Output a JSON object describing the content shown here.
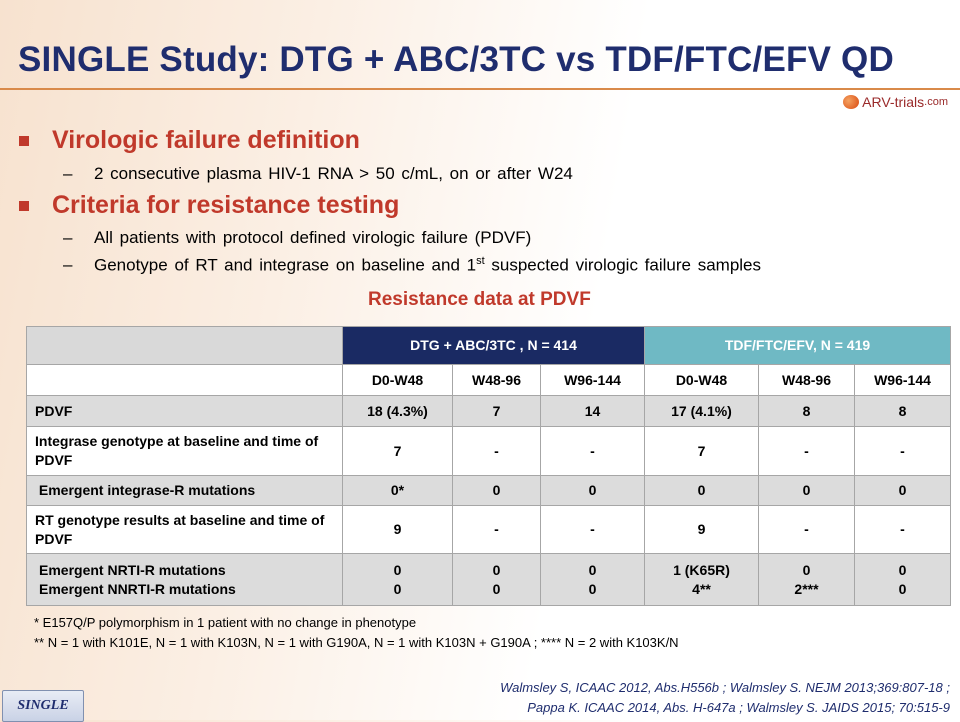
{
  "title": "SINGLE Study: DTG + ABC/3TC vs TDF/FTC/EFV QD",
  "logo": {
    "main": "ARV-trials",
    "suffix": ".com"
  },
  "bullets": [
    {
      "heading": "Virologic failure definition",
      "subs": [
        {
          "text": "2 consecutive plasma HIV-1 RNA > 50 c/mL, on or after W24"
        }
      ]
    },
    {
      "heading": "Criteria for resistance testing",
      "subs": [
        {
          "text": "All patients with protocol defined virologic failure (PDVF)"
        },
        {
          "text_before": "Genotype of RT and integrase on baseline and 1",
          "sup": "st",
          "text_after": " suspected virologic failure samples"
        }
      ]
    }
  ],
  "table": {
    "title": "Resistance data at PDVF",
    "groups": [
      "DTG + ABC/3TC , N = 414",
      "TDF/FTC/EFV, N = 419"
    ],
    "columns": [
      "D0-W48",
      "W48-96",
      "W96-144",
      "D0-W48",
      "W48-96",
      "W96-144"
    ],
    "rows": [
      {
        "label": "PDVF",
        "values": [
          "18 (4.3%)",
          "7",
          "14",
          "17 (4.1%)",
          "8",
          "8"
        ]
      },
      {
        "label": "Integrase genotype at baseline and time of PDVF",
        "values": [
          "7",
          "-",
          "-",
          "7",
          "-",
          "-"
        ]
      },
      {
        "label": " Emergent integrase-R mutations",
        "values": [
          "0*",
          "0",
          "0",
          "0",
          "0",
          "0"
        ]
      },
      {
        "label": "RT genotype results at baseline and time of PDVF",
        "values": [
          "9",
          "-",
          "-",
          "9",
          "-",
          "-"
        ]
      },
      {
        "label": "Emergent NRTI-R mutations",
        "label2": "Emergent NNRTI-R mutations",
        "values": [
          "0",
          "0",
          "0",
          "1 (K65R)",
          "0",
          "0"
        ],
        "values2": [
          "0",
          "0",
          "0",
          "4**",
          "2***",
          "0"
        ]
      }
    ]
  },
  "footnotes": [
    "* E157Q/P polymorphism in 1 patient with no change in phenotype",
    "** N = 1 with K101E, N = 1 with K103N, N = 1 with G190A, N = 1 with K103N + G190A ; **** N = 2 with K103K/N"
  ],
  "citations": [
    "Walmsley S, ICAAC 2012, Abs.H556b ; Walmsley S. NEJM 2013;369:807-18 ;",
    "Pappa K. ICAAC 2014, Abs. H-647a ; Walmsley S. JAIDS 2015; 70:515-9"
  ],
  "badge": "SINGLE",
  "colors": {
    "title": "#1f2d6e",
    "heading": "#c0392b",
    "dtg_header": "#1a2a63",
    "tdf_header": "#6fb9c4"
  }
}
